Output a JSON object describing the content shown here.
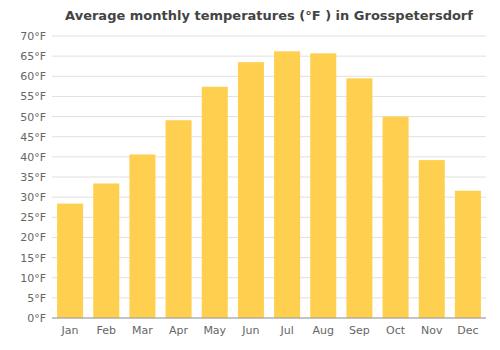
{
  "chart_data": {
    "type": "bar",
    "title": "Average monthly temperatures (°F ) in Grosspetersdorf",
    "categories": [
      "Jan",
      "Feb",
      "Mar",
      "Apr",
      "May",
      "Jun",
      "Jul",
      "Aug",
      "Sep",
      "Oct",
      "Nov",
      "Dec"
    ],
    "values": [
      28.4,
      33.4,
      40.6,
      49.1,
      57.4,
      63.5,
      66.2,
      65.7,
      59.5,
      50.0,
      39.2,
      31.6
    ],
    "color": "#FFD050",
    "ylim": [
      0,
      70
    ],
    "yticks": [
      {
        "value": 0,
        "label": "0°F"
      },
      {
        "value": 5,
        "label": "5°F"
      },
      {
        "value": 10,
        "label": "10°F"
      },
      {
        "value": 15,
        "label": "15°F"
      },
      {
        "value": 20,
        "label": "20°F"
      },
      {
        "value": 25,
        "label": "25°F"
      },
      {
        "value": 30,
        "label": "30°F"
      },
      {
        "value": 35,
        "label": "35°F"
      },
      {
        "value": 40,
        "label": "40°F"
      },
      {
        "value": 45,
        "label": "45°F"
      },
      {
        "value": 50,
        "label": "50°F"
      },
      {
        "value": 55,
        "label": "55°F"
      },
      {
        "value": 60,
        "label": "60°F"
      },
      {
        "value": 65,
        "label": "65°F"
      },
      {
        "value": 70,
        "label": "70°F"
      }
    ],
    "grid": true
  }
}
